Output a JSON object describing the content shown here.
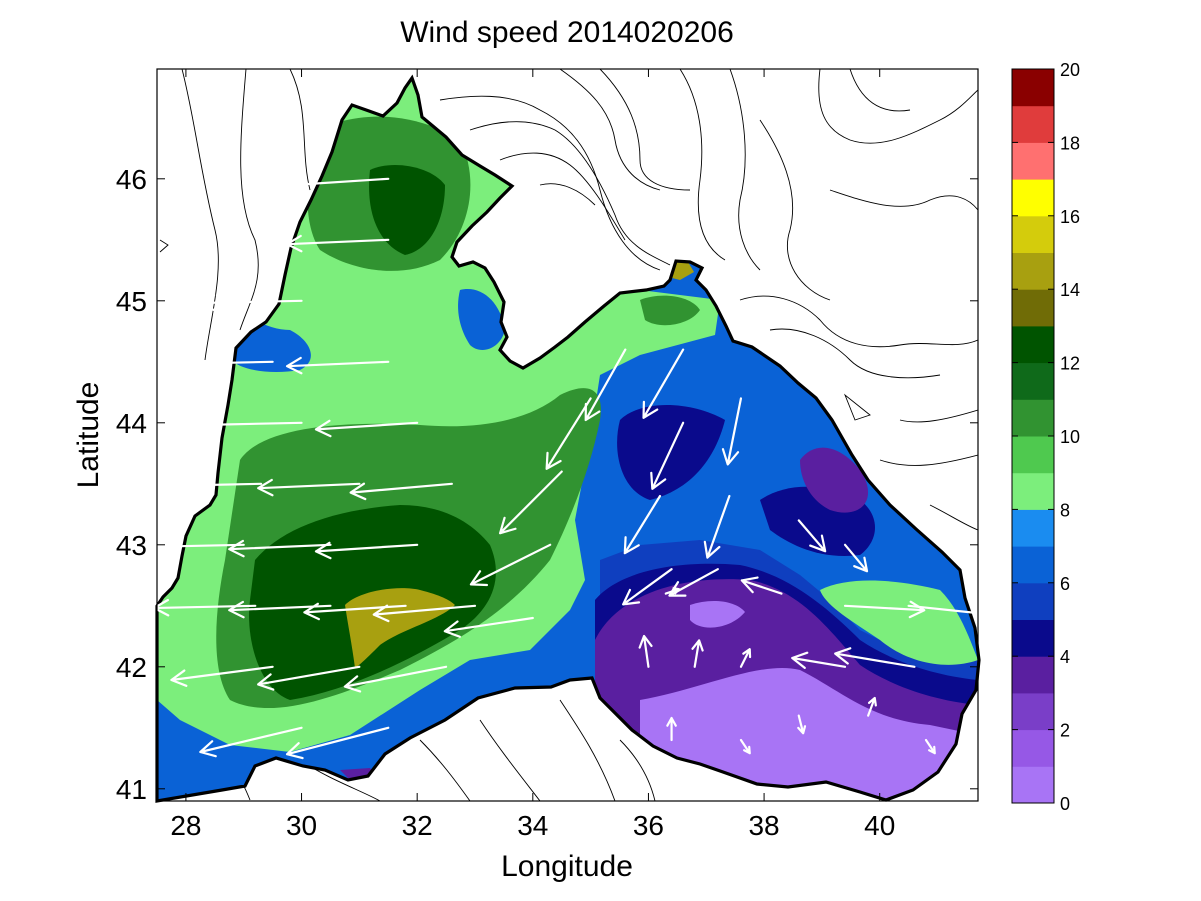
{
  "chart_data": {
    "type": "heatmap",
    "title": "Wind speed 2014020206",
    "xlabel": "Longitude",
    "ylabel": "Latitude",
    "xlim": [
      27.5,
      41.7
    ],
    "ylim": [
      40.9,
      46.9
    ],
    "x_ticks": [
      28,
      30,
      32,
      34,
      36,
      38,
      40
    ],
    "y_ticks": [
      41,
      42,
      43,
      44,
      45,
      46
    ],
    "colorbar": {
      "range": [
        0,
        20
      ],
      "ticks": [
        0,
        2,
        4,
        6,
        8,
        10,
        12,
        14,
        16,
        18,
        20
      ],
      "bands": [
        {
          "from": 0,
          "to": 1,
          "color": "#a874f5"
        },
        {
          "from": 1,
          "to": 2,
          "color": "#9658e6"
        },
        {
          "from": 2,
          "to": 3,
          "color": "#7a3ec8"
        },
        {
          "from": 3,
          "to": 4,
          "color": "#5a1fa0"
        },
        {
          "from": 4,
          "to": 5,
          "color": "#0a0a8c"
        },
        {
          "from": 5,
          "to": 6,
          "color": "#0f3fbf"
        },
        {
          "from": 6,
          "to": 7,
          "color": "#0a62d6"
        },
        {
          "from": 7,
          "to": 8,
          "color": "#1a8cf0"
        },
        {
          "from": 8,
          "to": 9,
          "color": "#7cee7c"
        },
        {
          "from": 9,
          "to": 10,
          "color": "#4fc94f"
        },
        {
          "from": 10,
          "to": 11,
          "color": "#319331"
        },
        {
          "from": 11,
          "to": 12,
          "color": "#0f6a1a"
        },
        {
          "from": 12,
          "to": 13,
          "color": "#005400"
        },
        {
          "from": 13,
          "to": 14,
          "color": "#706c06"
        },
        {
          "from": 14,
          "to": 15,
          "color": "#a8a010"
        },
        {
          "from": 15,
          "to": 16,
          "color": "#d4cc0c"
        },
        {
          "from": 16,
          "to": 17,
          "color": "#ffff00"
        },
        {
          "from": 17,
          "to": 18,
          "color": "#ff7070"
        },
        {
          "from": 18,
          "to": 19,
          "color": "#e03c3c"
        },
        {
          "from": 19,
          "to": 20,
          "color": "#8a0000"
        }
      ]
    },
    "regions": [
      {
        "name": "basin-low-speed",
        "value": 3.5,
        "color": "#5a1fa0"
      },
      {
        "name": "basin-blue",
        "value": 6,
        "color": "#0a62d6"
      },
      {
        "name": "basin-light-green",
        "value": 8.5,
        "color": "#7cee7c"
      },
      {
        "name": "basin-mid-green",
        "value": 10,
        "color": "#319331"
      },
      {
        "name": "basin-dark-green",
        "value": 12,
        "color": "#005400"
      },
      {
        "name": "basin-peak",
        "value": 14.5,
        "color": "#a8a010"
      }
    ],
    "wind_vectors": [
      {
        "lon": 29.2,
        "lat": 42.5,
        "u": -4.6,
        "v": -0.1
      },
      {
        "lon": 30.5,
        "lat": 42.5,
        "u": -4.6,
        "v": -0.2
      },
      {
        "lon": 31.8,
        "lat": 42.5,
        "u": -4.6,
        "v": -0.3
      },
      {
        "lon": 33.0,
        "lat": 42.5,
        "u": -4.6,
        "v": -0.4
      },
      {
        "lon": 29.0,
        "lat": 43.0,
        "u": -4.6,
        "v": -0.1
      },
      {
        "lon": 30.5,
        "lat": 43.0,
        "u": -4.6,
        "v": -0.2
      },
      {
        "lon": 32.0,
        "lat": 43.0,
        "u": -4.6,
        "v": -0.3
      },
      {
        "lon": 29.3,
        "lat": 43.5,
        "u": -4.6,
        "v": -0.1
      },
      {
        "lon": 31.0,
        "lat": 43.5,
        "u": -4.6,
        "v": -0.2
      },
      {
        "lon": 32.6,
        "lat": 43.5,
        "u": -4.6,
        "v": -0.4
      },
      {
        "lon": 30.0,
        "lat": 44.0,
        "u": -4.6,
        "v": -0.1
      },
      {
        "lon": 32.0,
        "lat": 44.0,
        "u": -4.6,
        "v": -0.3
      },
      {
        "lon": 29.5,
        "lat": 44.5,
        "u": -4.6,
        "v": -0.1
      },
      {
        "lon": 31.5,
        "lat": 44.5,
        "u": -4.6,
        "v": -0.2
      },
      {
        "lon": 30.0,
        "lat": 45.0,
        "u": -4.6,
        "v": -0.1
      },
      {
        "lon": 31.5,
        "lat": 45.5,
        "u": -4.6,
        "v": -0.2
      },
      {
        "lon": 31.5,
        "lat": 46.0,
        "u": -4.6,
        "v": -0.3
      },
      {
        "lon": 29.5,
        "lat": 42.0,
        "u": -4.6,
        "v": -0.6
      },
      {
        "lon": 31.0,
        "lat": 42.0,
        "u": -4.6,
        "v": -0.8
      },
      {
        "lon": 32.5,
        "lat": 42.0,
        "u": -4.6,
        "v": -0.9
      },
      {
        "lon": 30.0,
        "lat": 41.5,
        "u": -4.6,
        "v": -1.1
      },
      {
        "lon": 31.5,
        "lat": 41.5,
        "u": -4.6,
        "v": -1.2
      },
      {
        "lon": 34.0,
        "lat": 42.4,
        "u": -4.0,
        "v": -0.6
      },
      {
        "lon": 34.3,
        "lat": 43.0,
        "u": -3.6,
        "v": -1.8
      },
      {
        "lon": 34.5,
        "lat": 43.6,
        "u": -2.8,
        "v": -2.8
      },
      {
        "lon": 35.0,
        "lat": 44.2,
        "u": -2.0,
        "v": -3.2
      },
      {
        "lon": 35.6,
        "lat": 44.6,
        "u": -1.8,
        "v": -3.2
      },
      {
        "lon": 36.6,
        "lat": 44.6,
        "u": -1.8,
        "v": -3.1
      },
      {
        "lon": 36.6,
        "lat": 44.0,
        "u": -1.4,
        "v": -3.0
      },
      {
        "lon": 36.2,
        "lat": 43.4,
        "u": -1.6,
        "v": -2.6
      },
      {
        "lon": 37.4,
        "lat": 43.4,
        "u": -1.0,
        "v": -2.8
      },
      {
        "lon": 37.6,
        "lat": 44.2,
        "u": -0.6,
        "v": -3.0
      },
      {
        "lon": 36.4,
        "lat": 42.8,
        "u": -2.2,
        "v": -1.6
      },
      {
        "lon": 37.2,
        "lat": 42.8,
        "u": -2.2,
        "v": -1.2
      },
      {
        "lon": 38.6,
        "lat": 43.2,
        "u": 1.2,
        "v": -1.4
      },
      {
        "lon": 39.4,
        "lat": 43.0,
        "u": 1.0,
        "v": -1.2
      },
      {
        "lon": 38.3,
        "lat": 42.6,
        "u": -1.8,
        "v": 0.6
      },
      {
        "lon": 39.4,
        "lat": 42.5,
        "u": 3.6,
        "v": -0.2
      },
      {
        "lon": 40.5,
        "lat": 42.5,
        "u": 3.8,
        "v": -0.4
      },
      {
        "lon": 40.6,
        "lat": 42.0,
        "u": -3.6,
        "v": 0.6
      },
      {
        "lon": 39.4,
        "lat": 42.0,
        "u": -2.4,
        "v": 0.4
      },
      {
        "lon": 36.0,
        "lat": 42.0,
        "u": -0.2,
        "v": 1.4
      },
      {
        "lon": 36.8,
        "lat": 42.0,
        "u": 0.2,
        "v": 1.2
      },
      {
        "lon": 37.6,
        "lat": 42.0,
        "u": 0.4,
        "v": 0.8
      },
      {
        "lon": 36.3,
        "lat": 42.6,
        "u": 0.6,
        "v": 0.2
      },
      {
        "lon": 36.4,
        "lat": 41.4,
        "u": 0.0,
        "v": 1.0
      },
      {
        "lon": 37.6,
        "lat": 41.4,
        "u": 0.4,
        "v": -0.6
      },
      {
        "lon": 38.6,
        "lat": 41.6,
        "u": 0.2,
        "v": -0.8
      },
      {
        "lon": 39.8,
        "lat": 41.6,
        "u": 0.3,
        "v": 0.8
      },
      {
        "lon": 40.8,
        "lat": 41.4,
        "u": 0.4,
        "v": -0.6
      }
    ]
  }
}
